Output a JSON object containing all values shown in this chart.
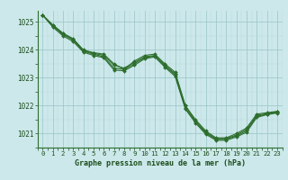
{
  "background_color": "#cce8ea",
  "grid_color_minor": "#b8d8da",
  "grid_color_major": "#99c4c8",
  "line_color": "#2d6e2d",
  "marker_color": "#2d6e2d",
  "xlabel": "Graphe pression niveau de la mer (hPa)",
  "xlabel_color": "#1a4d1a",
  "xlim": [
    -0.5,
    23.5
  ],
  "ylim": [
    1020.5,
    1025.4
  ],
  "yticks": [
    1021,
    1022,
    1023,
    1024,
    1025
  ],
  "xticks": [
    0,
    1,
    2,
    3,
    4,
    5,
    6,
    7,
    8,
    9,
    10,
    11,
    12,
    13,
    14,
    15,
    16,
    17,
    18,
    19,
    20,
    21,
    22,
    23
  ],
  "series": [
    [
      1025.25,
      1024.9,
      1024.6,
      1024.4,
      1024.0,
      1023.9,
      1023.85,
      1023.5,
      1023.3,
      1023.6,
      1023.8,
      1023.85,
      1023.5,
      1023.2,
      1022.0,
      1021.5,
      1021.1,
      1020.85,
      1020.85,
      1021.0,
      1021.2,
      1021.7,
      1021.75,
      1021.8
    ],
    [
      1025.25,
      1024.88,
      1024.58,
      1024.38,
      1023.98,
      1023.88,
      1023.8,
      1023.45,
      1023.35,
      1023.55,
      1023.75,
      1023.8,
      1023.45,
      1023.15,
      1022.0,
      1021.45,
      1021.05,
      1020.82,
      1020.82,
      1020.95,
      1021.15,
      1021.65,
      1021.72,
      1021.78
    ],
    [
      1025.25,
      1024.85,
      1024.55,
      1024.35,
      1023.95,
      1023.85,
      1023.75,
      1023.35,
      1023.3,
      1023.5,
      1023.72,
      1023.78,
      1023.42,
      1023.1,
      1021.92,
      1021.42,
      1021.02,
      1020.8,
      1020.8,
      1020.92,
      1021.1,
      1021.62,
      1021.7,
      1021.76
    ],
    [
      1025.25,
      1024.82,
      1024.5,
      1024.3,
      1023.92,
      1023.8,
      1023.72,
      1023.28,
      1023.25,
      1023.45,
      1023.68,
      1023.75,
      1023.38,
      1023.05,
      1021.88,
      1021.38,
      1020.98,
      1020.76,
      1020.76,
      1020.88,
      1021.05,
      1021.58,
      1021.68,
      1021.74
    ]
  ]
}
